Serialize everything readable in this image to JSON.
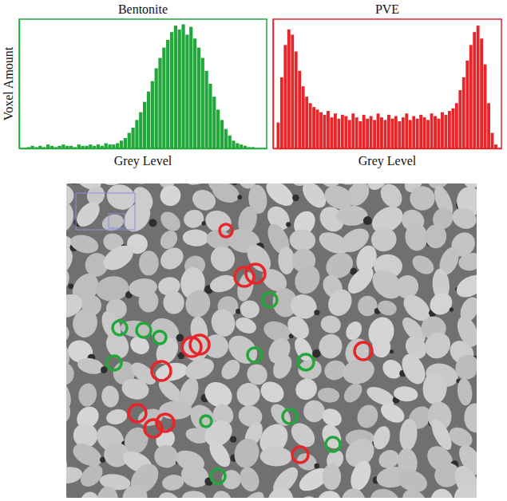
{
  "chart_data": [
    {
      "type": "histogram",
      "title": "Bentonite",
      "x_label": "Grey Level",
      "y_label": "Voxel Amount",
      "color": "#22a83a",
      "tick_labels": false,
      "xlim": [
        0,
        256
      ],
      "ylim": [
        0,
        100
      ],
      "bins": [
        0,
        4,
        8,
        12,
        16,
        20,
        24,
        28,
        32,
        36,
        40,
        44,
        48,
        52,
        56,
        60,
        64,
        68,
        72,
        76,
        80,
        84,
        88,
        92,
        96,
        100,
        104,
        108,
        112,
        116,
        120,
        124,
        128,
        132,
        136,
        140,
        144,
        148,
        152,
        156,
        160,
        164,
        168,
        172,
        176,
        180,
        184,
        188,
        192,
        196,
        200,
        204,
        208,
        212,
        216,
        220,
        224,
        228,
        232,
        236,
        240,
        244,
        248,
        252,
        256
      ],
      "counts": [
        0,
        0,
        1,
        2,
        1,
        2,
        1,
        3,
        2,
        1,
        2,
        3,
        2,
        2,
        1,
        3,
        2,
        2,
        3,
        2,
        3,
        2,
        4,
        3,
        3,
        4,
        6,
        8,
        12,
        16,
        22,
        28,
        36,
        44,
        52,
        62,
        70,
        78,
        84,
        90,
        95,
        92,
        96,
        88,
        94,
        85,
        78,
        70,
        60,
        50,
        40,
        30,
        22,
        15,
        10,
        6,
        4,
        3,
        2,
        1,
        1,
        0,
        0,
        0
      ]
    },
    {
      "type": "histogram",
      "title": "PVE",
      "x_label": "Grey Level",
      "color": "#e8262a",
      "tick_labels": false,
      "xlim": [
        0,
        256
      ],
      "ylim": [
        0,
        100
      ],
      "bins": [
        0,
        4,
        8,
        12,
        16,
        20,
        24,
        28,
        32,
        36,
        40,
        44,
        48,
        52,
        56,
        60,
        64,
        68,
        72,
        76,
        80,
        84,
        88,
        92,
        96,
        100,
        104,
        108,
        112,
        116,
        120,
        124,
        128,
        132,
        136,
        140,
        144,
        148,
        152,
        156,
        160,
        164,
        168,
        172,
        176,
        180,
        184,
        188,
        192,
        196,
        200,
        204,
        208,
        212,
        216,
        220,
        224,
        228,
        232,
        236,
        240,
        244,
        248,
        252,
        256
      ],
      "counts": [
        0,
        20,
        55,
        80,
        92,
        88,
        75,
        60,
        48,
        40,
        35,
        32,
        30,
        28,
        26,
        29,
        24,
        27,
        23,
        26,
        25,
        22,
        27,
        24,
        21,
        26,
        23,
        25,
        22,
        27,
        24,
        22,
        26,
        23,
        25,
        21,
        24,
        27,
        22,
        25,
        23,
        26,
        24,
        22,
        27,
        25,
        23,
        28,
        26,
        29,
        31,
        35,
        45,
        55,
        68,
        80,
        90,
        95,
        85,
        65,
        35,
        12,
        3,
        0
      ]
    }
  ]
}
